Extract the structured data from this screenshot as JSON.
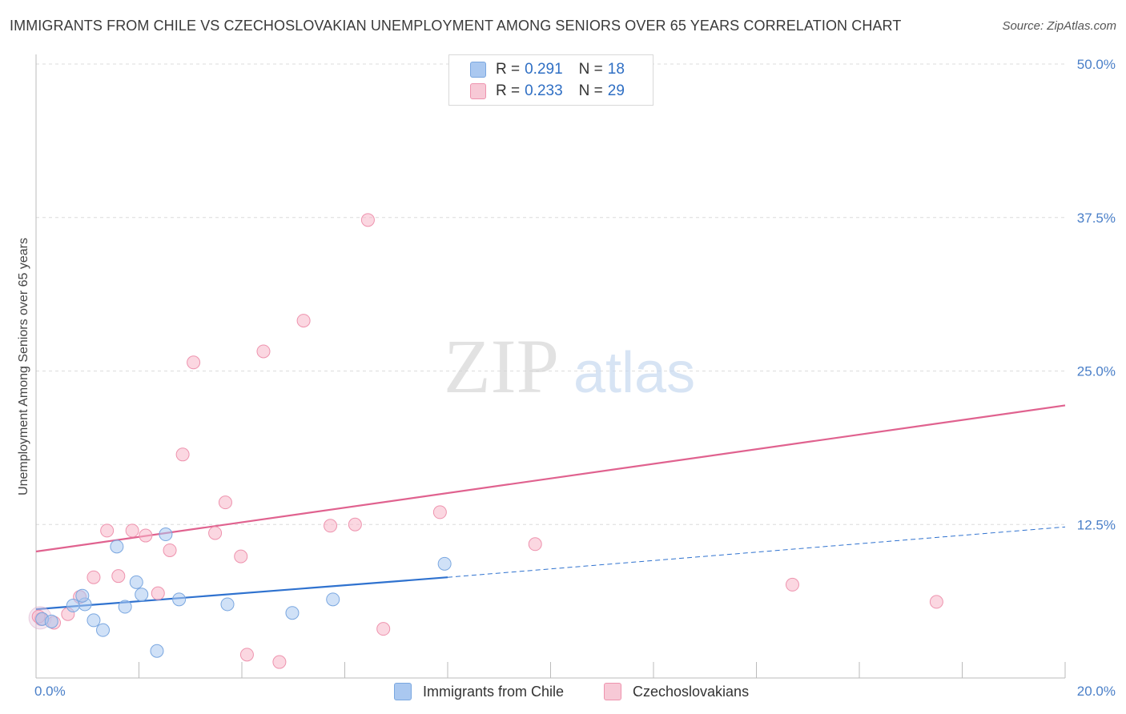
{
  "title": "IMMIGRANTS FROM CHILE VS CZECHOSLOVAKIAN UNEMPLOYMENT AMONG SENIORS OVER 65 YEARS CORRELATION CHART",
  "source": "Source: ZipAtlas.com",
  "watermark": {
    "zip": "ZIP",
    "atlas": "atlas"
  },
  "legend": {
    "r_label": "R =",
    "n_label": "N =",
    "rows": [
      {
        "r": "0.291",
        "n": "18",
        "color": "#aac8f0"
      },
      {
        "r": "0.233",
        "n": "29",
        "color": "#f7b6c8"
      }
    ]
  },
  "bottom_legend": [
    {
      "label": "Immigrants from Chile",
      "color": "#aac8f0"
    },
    {
      "label": "Czechoslovakians",
      "color": "#f7b6c8"
    }
  ],
  "chart_data": {
    "type": "scatter",
    "title": "IMMIGRANTS FROM CHILE VS CZECHOSLOVAKIAN UNEMPLOYMENT AMONG SENIORS OVER 65 YEARS CORRELATION CHART",
    "xlabel": "",
    "ylabel": "Unemployment Among Seniors over 65 years",
    "xlim": [
      0,
      20
    ],
    "ylim": [
      0,
      50
    ],
    "x_tick_labels": [
      {
        "value": 0,
        "label": "0.0%"
      },
      {
        "value": 20,
        "label": "20.0%"
      }
    ],
    "y_tick_labels": [
      {
        "value": 12.5,
        "label": "12.5%"
      },
      {
        "value": 25,
        "label": "25.0%"
      },
      {
        "value": 37.5,
        "label": "37.5%"
      },
      {
        "value": 50,
        "label": "50.0%"
      }
    ],
    "series": [
      {
        "name": "Immigrants from Chile",
        "color": "#aac8f0",
        "stroke": "#7aa7e0",
        "line_color": "#2f72cf",
        "points": [
          {
            "x": 0.12,
            "y": 4.8
          },
          {
            "x": 0.3,
            "y": 4.6
          },
          {
            "x": 0.95,
            "y": 6.0
          },
          {
            "x": 0.72,
            "y": 5.9
          },
          {
            "x": 0.9,
            "y": 6.7
          },
          {
            "x": 1.12,
            "y": 4.7
          },
          {
            "x": 1.3,
            "y": 3.9
          },
          {
            "x": 1.57,
            "y": 10.7
          },
          {
            "x": 1.73,
            "y": 5.8
          },
          {
            "x": 1.95,
            "y": 7.8
          },
          {
            "x": 2.05,
            "y": 6.8
          },
          {
            "x": 2.35,
            "y": 2.2
          },
          {
            "x": 2.52,
            "y": 11.7
          },
          {
            "x": 2.78,
            "y": 6.4
          },
          {
            "x": 3.72,
            "y": 6.0
          },
          {
            "x": 4.98,
            "y": 5.3
          },
          {
            "x": 5.77,
            "y": 6.4
          },
          {
            "x": 7.94,
            "y": 9.3
          }
        ],
        "trend": {
          "x0": 0,
          "y0": 5.6,
          "x1": 8.0,
          "y1": 8.2,
          "dash_to_x": 20,
          "dash_to_y": 12.3
        }
      },
      {
        "name": "Czechoslovakians",
        "color": "#f7b6c8",
        "stroke": "#ee93ae",
        "line_color": "#e0628f",
        "points": [
          {
            "x": 0.1,
            "y": 4.8
          },
          {
            "x": 0.35,
            "y": 4.5
          },
          {
            "x": 0.62,
            "y": 5.2
          },
          {
            "x": 0.85,
            "y": 6.6
          },
          {
            "x": 1.12,
            "y": 8.2
          },
          {
            "x": 1.38,
            "y": 12.0
          },
          {
            "x": 1.6,
            "y": 8.3
          },
          {
            "x": 1.87,
            "y": 12.0
          },
          {
            "x": 2.13,
            "y": 11.6
          },
          {
            "x": 2.37,
            "y": 6.9
          },
          {
            "x": 2.6,
            "y": 10.4
          },
          {
            "x": 2.85,
            "y": 18.2
          },
          {
            "x": 3.06,
            "y": 25.7
          },
          {
            "x": 3.48,
            "y": 11.8
          },
          {
            "x": 3.68,
            "y": 14.3
          },
          {
            "x": 3.98,
            "y": 9.9
          },
          {
            "x": 4.1,
            "y": 1.9
          },
          {
            "x": 4.42,
            "y": 26.6
          },
          {
            "x": 4.73,
            "y": 1.3
          },
          {
            "x": 5.2,
            "y": 29.1
          },
          {
            "x": 5.72,
            "y": 12.4
          },
          {
            "x": 6.2,
            "y": 12.5
          },
          {
            "x": 6.45,
            "y": 37.3
          },
          {
            "x": 6.75,
            "y": 4.0
          },
          {
            "x": 7.85,
            "y": 13.5
          },
          {
            "x": 9.7,
            "y": 10.9
          },
          {
            "x": 14.7,
            "y": 7.6
          },
          {
            "x": 17.5,
            "y": 6.2
          },
          {
            "x": 0.05,
            "y": 5.0
          }
        ],
        "trend": {
          "x0": 0,
          "y0": 10.3,
          "x1": 20,
          "y1": 22.2
        }
      }
    ]
  }
}
